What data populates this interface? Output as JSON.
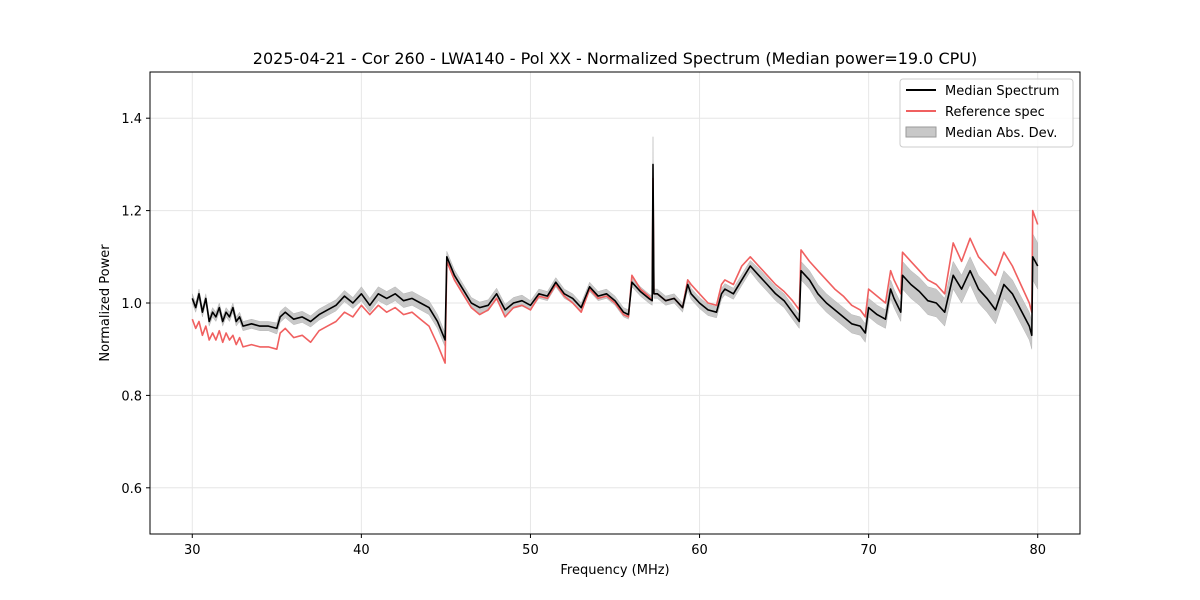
{
  "chart_data": {
    "type": "line",
    "title": "2025-04-21 - Cor 260 - LWA140 - Pol XX - Normalized Spectrum (Median power=19.0 CPU)",
    "xlabel": "Frequency (MHz)",
    "ylabel": "Normalized Power",
    "xlim": [
      27.5,
      82.5
    ],
    "ylim": [
      0.5,
      1.5
    ],
    "xticks": [
      30,
      40,
      50,
      60,
      70,
      80
    ],
    "yticks": [
      0.6,
      0.8,
      1.0,
      1.2,
      1.4
    ],
    "xtick_labels": [
      "30",
      "40",
      "50",
      "60",
      "70",
      "80"
    ],
    "ytick_labels": [
      "0.6",
      "0.8",
      "1.0",
      "1.2",
      "1.4"
    ],
    "grid": true,
    "legend_position": "top-right",
    "legend": [
      "Median Spectrum",
      "Reference spec",
      "Median Abs. Dev."
    ],
    "colors": {
      "median": "#000000",
      "reference": "#f06060",
      "mad_band": "#c8c8c8",
      "grid": "#e6e6e6"
    },
    "series": [
      {
        "name": "Median Spectrum",
        "x": [
          30.0,
          30.2,
          30.4,
          30.6,
          30.8,
          31.0,
          31.2,
          31.4,
          31.6,
          31.8,
          32.0,
          32.2,
          32.4,
          32.6,
          32.8,
          33.0,
          33.5,
          34.0,
          34.5,
          35.0,
          35.2,
          35.5,
          36.0,
          36.5,
          37.0,
          37.5,
          38.0,
          38.5,
          39.0,
          39.5,
          40.0,
          40.5,
          41.0,
          41.5,
          42.0,
          42.5,
          43.0,
          43.5,
          44.0,
          44.5,
          44.95,
          45.05,
          45.5,
          46.0,
          46.5,
          47.0,
          47.5,
          48.0,
          48.5,
          49.0,
          49.5,
          50.0,
          50.5,
          51.0,
          51.5,
          52.0,
          52.5,
          53.0,
          53.5,
          54.0,
          54.5,
          55.0,
          55.5,
          55.8,
          56.0,
          56.5,
          57.0,
          57.2,
          57.25,
          57.3,
          57.5,
          58.0,
          58.5,
          59.0,
          59.3,
          59.5,
          60.0,
          60.5,
          61.0,
          61.3,
          61.5,
          62.0,
          62.5,
          63.0,
          63.5,
          64.0,
          64.5,
          65.0,
          65.5,
          65.9,
          66.0,
          66.5,
          67.0,
          67.5,
          68.0,
          68.5,
          69.0,
          69.5,
          69.8,
          70.0,
          70.5,
          71.0,
          71.3,
          71.5,
          71.9,
          72.0,
          72.5,
          73.0,
          73.5,
          74.0,
          74.5,
          75.0,
          75.5,
          76.0,
          76.5,
          77.0,
          77.5,
          78.0,
          78.5,
          79.0,
          79.5,
          79.65,
          79.7,
          80.0
        ],
        "values": [
          1.01,
          0.99,
          1.02,
          0.98,
          1.01,
          0.96,
          0.98,
          0.97,
          0.99,
          0.96,
          0.98,
          0.97,
          0.99,
          0.96,
          0.97,
          0.95,
          0.955,
          0.95,
          0.95,
          0.945,
          0.97,
          0.98,
          0.965,
          0.97,
          0.96,
          0.975,
          0.985,
          0.995,
          1.015,
          1.0,
          1.02,
          0.995,
          1.02,
          1.01,
          1.02,
          1.005,
          1.01,
          1.0,
          0.99,
          0.96,
          0.92,
          1.1,
          1.06,
          1.03,
          1.0,
          0.99,
          0.995,
          1.02,
          0.985,
          1.0,
          1.005,
          0.995,
          1.02,
          1.015,
          1.045,
          1.02,
          1.01,
          0.99,
          1.035,
          1.015,
          1.02,
          1.005,
          0.98,
          0.975,
          1.045,
          1.025,
          1.01,
          1.005,
          1.3,
          1.02,
          1.02,
          1.005,
          1.01,
          0.99,
          1.04,
          1.02,
          1.0,
          0.985,
          0.98,
          1.02,
          1.03,
          1.02,
          1.05,
          1.08,
          1.06,
          1.04,
          1.02,
          1.005,
          0.98,
          0.96,
          1.07,
          1.05,
          1.02,
          1.0,
          0.985,
          0.97,
          0.955,
          0.95,
          0.935,
          0.99,
          0.975,
          0.965,
          1.03,
          1.01,
          0.98,
          1.06,
          1.04,
          1.025,
          1.005,
          1.0,
          0.98,
          1.06,
          1.03,
          1.07,
          1.03,
          1.01,
          0.985,
          1.04,
          1.02,
          0.985,
          0.95,
          0.93,
          1.1,
          1.08
        ]
      },
      {
        "name": "Reference spec",
        "x": [
          30.0,
          30.2,
          30.4,
          30.6,
          30.8,
          31.0,
          31.2,
          31.4,
          31.6,
          31.8,
          32.0,
          32.2,
          32.4,
          32.6,
          32.8,
          33.0,
          33.5,
          34.0,
          34.5,
          35.0,
          35.2,
          35.5,
          36.0,
          36.5,
          37.0,
          37.5,
          38.0,
          38.5,
          39.0,
          39.5,
          40.0,
          40.5,
          41.0,
          41.5,
          42.0,
          42.5,
          43.0,
          43.5,
          44.0,
          44.5,
          44.95,
          45.05,
          45.5,
          46.0,
          46.5,
          47.0,
          47.5,
          48.0,
          48.5,
          49.0,
          49.5,
          50.0,
          50.5,
          51.0,
          51.5,
          52.0,
          52.5,
          53.0,
          53.5,
          54.0,
          54.5,
          55.0,
          55.5,
          55.8,
          56.0,
          56.5,
          57.0,
          57.2,
          57.25,
          57.3,
          57.5,
          58.0,
          58.5,
          59.0,
          59.3,
          59.5,
          60.0,
          60.5,
          61.0,
          61.3,
          61.5,
          62.0,
          62.5,
          63.0,
          63.5,
          64.0,
          64.5,
          65.0,
          65.5,
          65.9,
          66.0,
          66.5,
          67.0,
          67.5,
          68.0,
          68.5,
          69.0,
          69.5,
          69.8,
          70.0,
          70.5,
          71.0,
          71.3,
          71.5,
          71.9,
          72.0,
          72.5,
          73.0,
          73.5,
          74.0,
          74.5,
          75.0,
          75.5,
          76.0,
          76.5,
          77.0,
          77.5,
          78.0,
          78.5,
          79.0,
          79.5,
          79.65,
          79.7,
          80.0
        ],
        "values": [
          0.965,
          0.945,
          0.96,
          0.93,
          0.95,
          0.92,
          0.935,
          0.92,
          0.94,
          0.915,
          0.935,
          0.92,
          0.93,
          0.91,
          0.925,
          0.905,
          0.91,
          0.905,
          0.905,
          0.9,
          0.935,
          0.945,
          0.925,
          0.93,
          0.915,
          0.94,
          0.95,
          0.96,
          0.98,
          0.97,
          0.995,
          0.975,
          0.995,
          0.98,
          0.99,
          0.975,
          0.98,
          0.965,
          0.95,
          0.91,
          0.87,
          1.09,
          1.05,
          1.02,
          0.99,
          0.975,
          0.985,
          1.01,
          0.97,
          0.99,
          0.995,
          0.985,
          1.015,
          1.01,
          1.04,
          1.015,
          1.0,
          0.98,
          1.03,
          1.01,
          1.015,
          1.0,
          0.975,
          0.97,
          1.06,
          1.03,
          1.015,
          1.005,
          1.27,
          1.02,
          1.02,
          1.005,
          1.01,
          0.99,
          1.05,
          1.04,
          1.02,
          1.0,
          0.995,
          1.04,
          1.05,
          1.04,
          1.08,
          1.1,
          1.08,
          1.06,
          1.04,
          1.025,
          1.005,
          0.985,
          1.115,
          1.09,
          1.07,
          1.05,
          1.03,
          1.015,
          0.995,
          0.985,
          0.97,
          1.03,
          1.015,
          1.0,
          1.07,
          1.05,
          1.02,
          1.11,
          1.09,
          1.07,
          1.05,
          1.04,
          1.02,
          1.13,
          1.09,
          1.14,
          1.1,
          1.08,
          1.06,
          1.11,
          1.08,
          1.04,
          1.0,
          0.98,
          1.2,
          1.17
        ]
      }
    ],
    "mad_band": {
      "name": "Median Abs. Dev.",
      "halfwidth": [
        0.01,
        0.01,
        0.01,
        0.01,
        0.01,
        0.01,
        0.01,
        0.01,
        0.01,
        0.01,
        0.01,
        0.01,
        0.01,
        0.01,
        0.01,
        0.01,
        0.01,
        0.01,
        0.01,
        0.012,
        0.012,
        0.012,
        0.012,
        0.012,
        0.012,
        0.012,
        0.012,
        0.012,
        0.012,
        0.012,
        0.015,
        0.015,
        0.015,
        0.015,
        0.015,
        0.015,
        0.015,
        0.015,
        0.015,
        0.015,
        0.015,
        0.012,
        0.012,
        0.012,
        0.012,
        0.012,
        0.012,
        0.012,
        0.012,
        0.012,
        0.012,
        0.01,
        0.01,
        0.01,
        0.01,
        0.01,
        0.01,
        0.01,
        0.01,
        0.01,
        0.01,
        0.01,
        0.01,
        0.01,
        0.01,
        0.01,
        0.01,
        0.01,
        0.06,
        0.01,
        0.01,
        0.01,
        0.01,
        0.01,
        0.012,
        0.012,
        0.012,
        0.012,
        0.012,
        0.012,
        0.012,
        0.012,
        0.012,
        0.012,
        0.015,
        0.015,
        0.015,
        0.015,
        0.015,
        0.015,
        0.02,
        0.02,
        0.02,
        0.02,
        0.02,
        0.02,
        0.02,
        0.02,
        0.02,
        0.02,
        0.02,
        0.02,
        0.02,
        0.02,
        0.02,
        0.03,
        0.03,
        0.03,
        0.03,
        0.03,
        0.03,
        0.03,
        0.03,
        0.03,
        0.03,
        0.03,
        0.03,
        0.03,
        0.03,
        0.03,
        0.03,
        0.03,
        0.05,
        0.05
      ]
    }
  }
}
